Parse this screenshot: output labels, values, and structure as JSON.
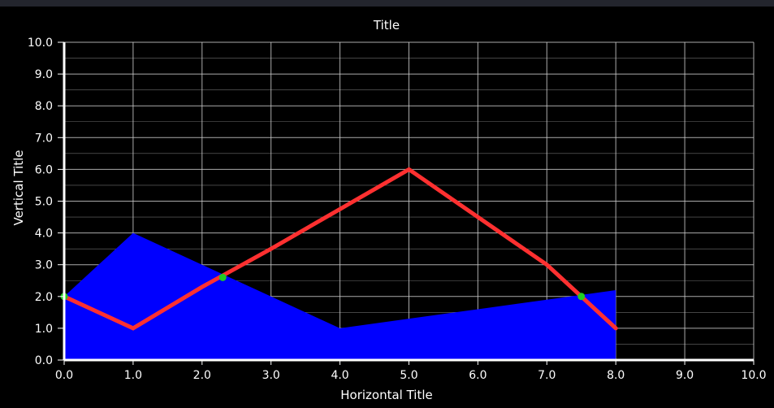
{
  "chart_data": {
    "type": "line",
    "title": "Title",
    "xlabel": "Horizontal Title",
    "ylabel": "Vertical Title",
    "xlim": [
      0,
      10
    ],
    "ylim": [
      0,
      10
    ],
    "x_ticks": [
      "0.0",
      "1.0",
      "2.0",
      "3.0",
      "4.0",
      "5.0",
      "6.0",
      "7.0",
      "8.0",
      "9.0",
      "10.0"
    ],
    "y_ticks": [
      "0.0",
      "1.0",
      "2.0",
      "3.0",
      "4.0",
      "5.0",
      "6.0",
      "7.0",
      "8.0",
      "9.0",
      "10.0"
    ],
    "grid": true,
    "series": [
      {
        "kind": "area",
        "color": "#0000ff",
        "x": [
          0,
          1,
          2,
          3,
          4,
          5,
          6,
          7,
          8
        ],
        "y": [
          2,
          4,
          3,
          2,
          1,
          1.3,
          1.6,
          1.9,
          2.2
        ]
      },
      {
        "kind": "line",
        "color": "#ff3030",
        "x": [
          0,
          1,
          2,
          3,
          4,
          5,
          6,
          7,
          8
        ],
        "y": [
          2,
          1,
          2.3,
          3.5,
          4.75,
          6,
          4.5,
          3,
          1
        ]
      }
    ],
    "markers": {
      "color": "#22cc22",
      "points": [
        {
          "x": 0,
          "y": 2
        },
        {
          "x": 2.3,
          "y": 2.6
        },
        {
          "x": 7.5,
          "y": 2
        }
      ]
    },
    "colors": {
      "background": "#000000",
      "grid": "#c8c8c8",
      "axis": "#ffffff"
    }
  }
}
